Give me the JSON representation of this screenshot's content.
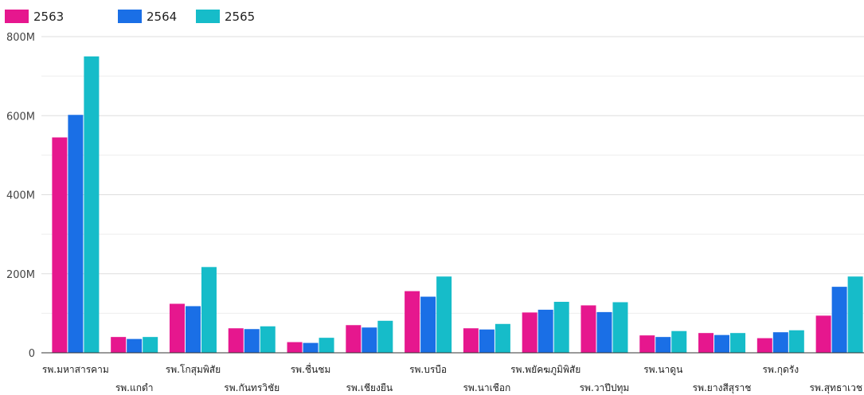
{
  "chart_data": {
    "type": "bar",
    "title": "",
    "xlabel": "",
    "ylabel": "",
    "ylim": [
      0,
      800000000
    ],
    "yticks": [
      0,
      200000000,
      400000000,
      600000000,
      800000000
    ],
    "ytick_labels": [
      "0",
      "200M",
      "400M",
      "600M",
      "800M"
    ],
    "grid": true,
    "legend_position": "top-left",
    "categories": [
      "รพ.มหาสารคาม",
      "รพ.แกดำ",
      "รพ.โกสุมพิสัย",
      "รพ.กันทรวิชัย",
      "รพ.ชื่นชม",
      "รพ.เชียงยืน",
      "รพ.บรบือ",
      "รพ.นาเชือก",
      "รพ.พยัคฆภูมิพิสัย",
      "รพ.วาปีปทุม",
      "รพ.นาดูน",
      "รพ.ยางสีสุราช",
      "รพ.กุดรัง",
      "รพ.สุทธาเวช"
    ],
    "series": [
      {
        "name": "2563",
        "color": "#e6178e",
        "values": [
          545000000,
          40000000,
          124000000,
          62000000,
          27000000,
          70000000,
          156000000,
          62000000,
          102000000,
          120000000,
          44000000,
          50000000,
          37000000,
          94000000
        ]
      },
      {
        "name": "2564",
        "color": "#1a6fe6",
        "values": [
          602000000,
          35000000,
          118000000,
          60000000,
          25000000,
          64000000,
          142000000,
          59000000,
          109000000,
          103000000,
          40000000,
          45000000,
          52000000,
          167000000
        ]
      },
      {
        "name": "2565",
        "color": "#16bcc9",
        "values": [
          750000000,
          40000000,
          217000000,
          67000000,
          38000000,
          81000000,
          193000000,
          73000000,
          129000000,
          128000000,
          55000000,
          50000000,
          57000000,
          193000000
        ]
      }
    ]
  }
}
